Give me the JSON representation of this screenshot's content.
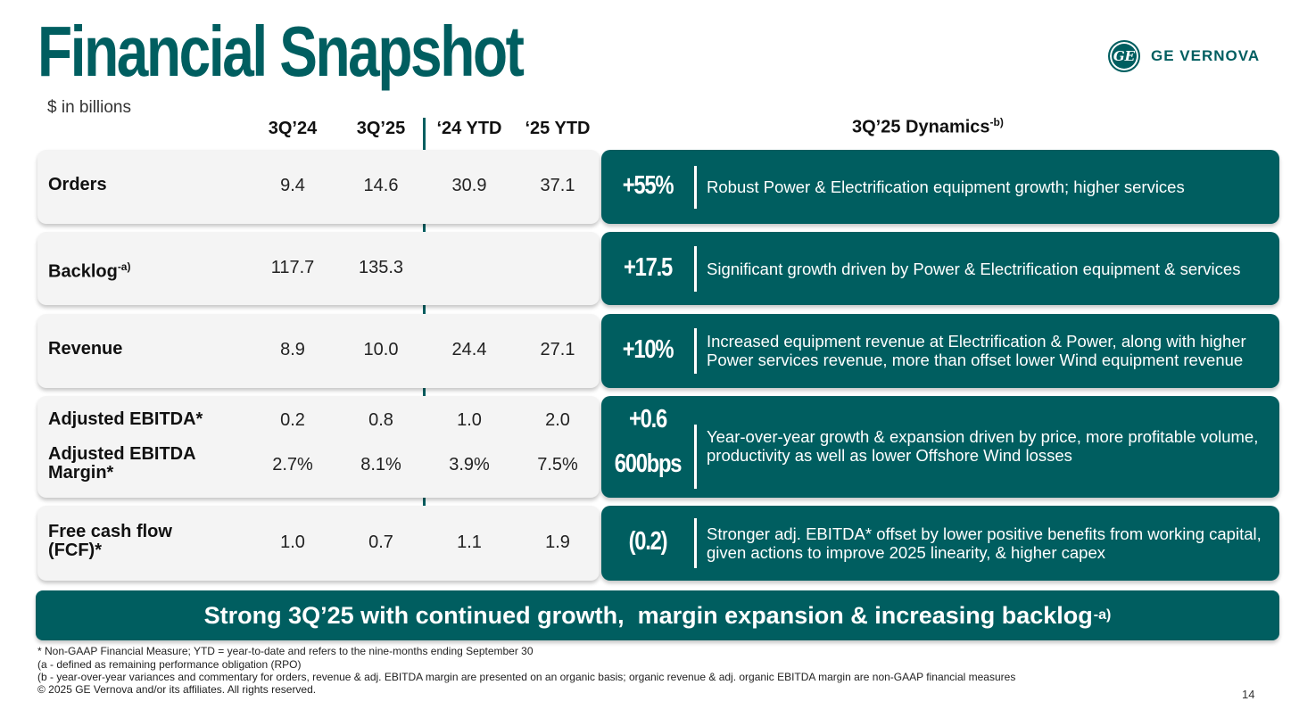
{
  "header": {
    "title": "Financial Snapshot",
    "units": "$ in billions",
    "logo_mark": "GE",
    "logo_text": "GE VERNOVA"
  },
  "columns": {
    "c1": "3Q’24",
    "c2": "3Q’25",
    "c3": "‘24 YTD",
    "c4": "‘25 YTD",
    "dynamics": "3Q’25 Dynamics",
    "dynamics_note": "-b)"
  },
  "rows": [
    {
      "label": "Orders",
      "values": [
        "9.4",
        "14.6",
        "30.9",
        "37.1"
      ],
      "dyn_value": "+55%",
      "dyn_text": "Robust Power & Electrification equipment growth; higher services"
    },
    {
      "label": "Backlog",
      "label_note": "-a)",
      "values": [
        "117.7",
        "135.3",
        "",
        ""
      ],
      "dyn_value": "+17.5",
      "dyn_text": "Significant growth driven by Power & Electrification equipment & services"
    },
    {
      "label": "Revenue",
      "values": [
        "8.9",
        "10.0",
        "24.4",
        "27.1"
      ],
      "dyn_value": "+10%",
      "dyn_text": "Increased equipment revenue at Electrification & Power, along with higher Power services revenue, more than offset lower Wind equipment revenue"
    },
    {
      "label": "Adjusted EBITDA*",
      "values": [
        "0.2",
        "0.8",
        "1.0",
        "2.0"
      ],
      "dyn_value": "+0.6",
      "label2": "Adjusted EBITDA Margin*",
      "values2": [
        "2.7%",
        "8.1%",
        "3.9%",
        "7.5%"
      ],
      "dyn_value2": "600bps",
      "dyn_text": "Year-over-year growth & expansion driven by price, more profitable volume, productivity as well as lower Offshore Wind losses"
    },
    {
      "label": "Free cash flow (FCF)*",
      "values": [
        "1.0",
        "0.7",
        "1.1",
        "1.9"
      ],
      "dyn_value": "(0.2)",
      "dyn_text": "Stronger adj. EBITDA* offset by lower positive benefits from working capital, given actions to improve 2025 linearity, & higher capex"
    }
  ],
  "banner": {
    "text": "Strong 3Q’25 with continued growth,  margin expansion & increasing backlog",
    "note": "-a)"
  },
  "footnotes": [
    "* Non-GAAP Financial Measure; YTD = year-to-date and refers to the nine-months ending September 30",
    "(a - defined as remaining performance obligation (RPO)",
    "(b - year-over-year variances and commentary for orders, revenue & adj. EBITDA margin are presented on an organic basis; organic revenue & adj. organic EBITDA margin are non-GAAP financial measures",
    "© 2025 GE Vernova and/or its affiliates. All rights reserved."
  ],
  "page_number": "14",
  "colors": {
    "brand": "#005e60",
    "row_bg": "#f4f4f4"
  }
}
